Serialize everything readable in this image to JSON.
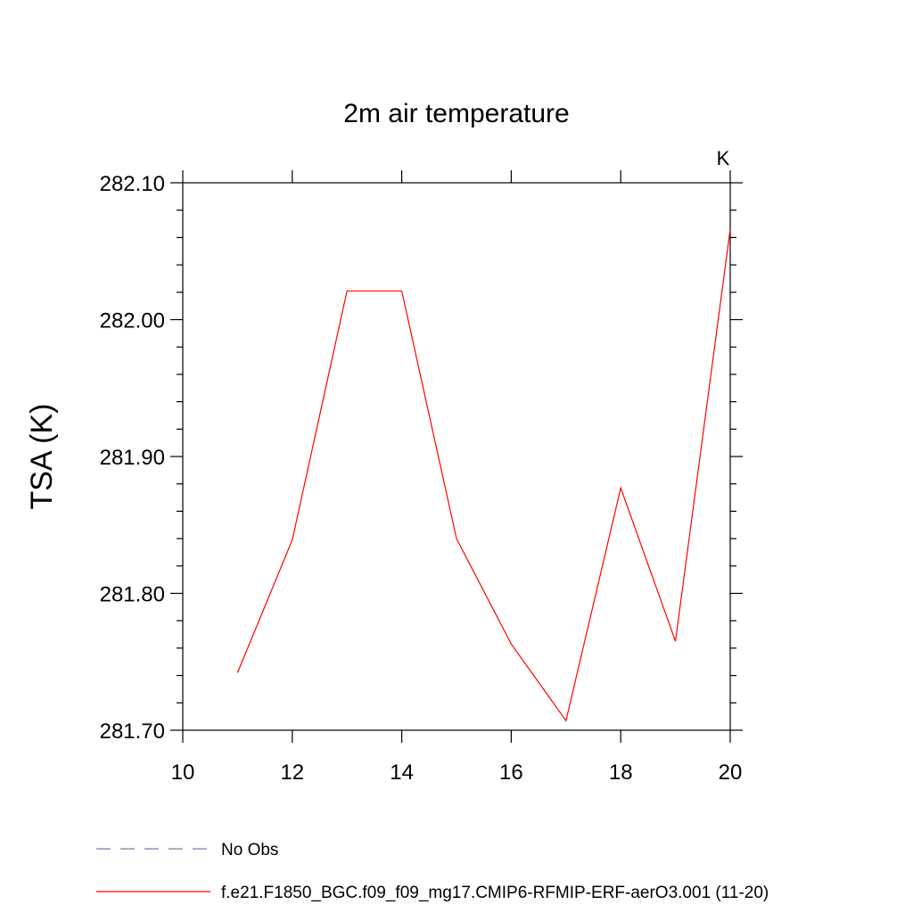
{
  "chart_data": {
    "type": "line",
    "title": "2m air temperature",
    "ylabel": "TSA  (K)",
    "units_label": "K",
    "xlim": [
      10,
      20
    ],
    "ylim": [
      281.7,
      282.1
    ],
    "x_ticks": [
      10,
      12,
      14,
      16,
      18,
      20
    ],
    "x_tick_labels": [
      "10",
      "12",
      "14",
      "16",
      "18",
      "20"
    ],
    "y_ticks": [
      281.7,
      281.8,
      281.9,
      282.0,
      282.1
    ],
    "y_tick_labels": [
      "281.70",
      "281.80",
      "281.90",
      "282.00",
      "282.10"
    ],
    "grid": false,
    "legend_position": "bottom",
    "series": [
      {
        "name": "f.e21.F1850_BGC.f09_f09_mg17.CMIP6-RFMIP-ERF-aerO3.001 (11-20)",
        "color": "#ff0000",
        "dash": "solid",
        "x": [
          11,
          12,
          13,
          14,
          15,
          16,
          17,
          18,
          19,
          20
        ],
        "y": [
          281.742,
          281.839,
          282.021,
          282.021,
          281.84,
          281.763,
          281.707,
          281.877,
          281.765,
          282.066
        ]
      }
    ],
    "legend": [
      {
        "label": "No Obs",
        "color": "#7d78b0",
        "dash": "dashed"
      },
      {
        "label": "f.e21.F1850_BGC.f09_f09_mg17.CMIP6-RFMIP-ERF-aerO3.001 (11-20)",
        "color": "#ff0000",
        "dash": "solid"
      }
    ]
  }
}
